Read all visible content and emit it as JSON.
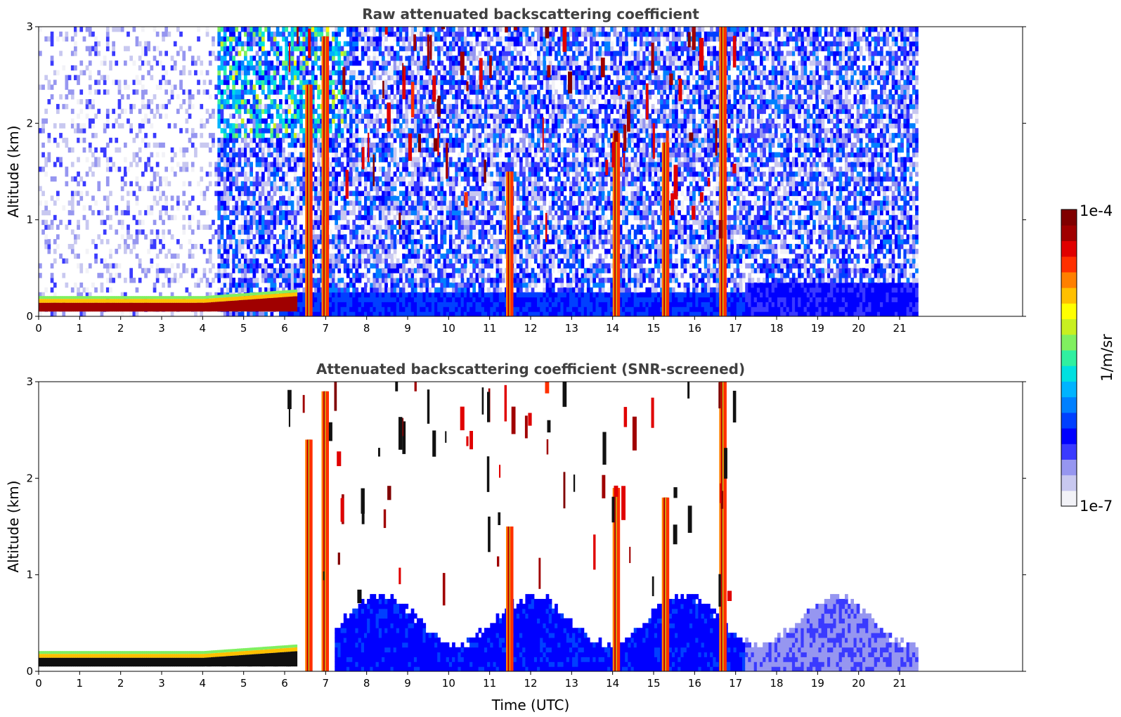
{
  "colorbar": {
    "max_label": "1e-4",
    "min_label": "1e-7",
    "unit_label": "1/m/sr",
    "colormap": [
      "#f2f2f7",
      "#c8c8f0",
      "#9696f0",
      "#3a3aff",
      "#0000ff",
      "#0040ff",
      "#0080ff",
      "#00b4ff",
      "#00e0e0",
      "#30f0a0",
      "#80f060",
      "#c8f020",
      "#ffff00",
      "#ffc000",
      "#ff8000",
      "#ff3000",
      "#e00000",
      "#a00000",
      "#800000"
    ]
  },
  "chart_data": [
    {
      "type": "heatmap",
      "title": "Raw attenuated backscattering coefficient",
      "xlabel": "",
      "ylabel": "Altitude (km)",
      "xlim": [
        0,
        24
      ],
      "ylim": [
        0,
        3
      ],
      "x_ticks": [
        "0",
        "1",
        "2",
        "3",
        "4",
        "5",
        "6",
        "7",
        "8",
        "9",
        "10",
        "11",
        "12",
        "13",
        "14",
        "15",
        "16",
        "17",
        "18",
        "19",
        "20",
        "21"
      ],
      "y_ticks": [
        "0",
        "1",
        "2",
        "3"
      ],
      "data_end_x": 21.45,
      "surface_layer": {
        "x_range": [
          0,
          6.3
        ],
        "altitude_km": [
          0.05,
          0.2
        ]
      },
      "rain_shafts_x": [
        6.6,
        7.0,
        11.5,
        14.1,
        15.3,
        16.7
      ]
    },
    {
      "type": "heatmap",
      "title": "Attenuated backscattering coefficient (SNR-screened)",
      "xlabel": "Time (UTC)",
      "ylabel": "Altitude (km)",
      "xlim": [
        0,
        24
      ],
      "ylim": [
        0,
        3
      ],
      "x_ticks": [
        "0",
        "1",
        "2",
        "3",
        "4",
        "5",
        "6",
        "7",
        "8",
        "9",
        "10",
        "11",
        "12",
        "13",
        "14",
        "15",
        "16",
        "17",
        "18",
        "19",
        "20",
        "21"
      ],
      "y_ticks": [
        "0",
        "1",
        "2",
        "3"
      ],
      "data_end_x": 21.45,
      "surface_layer": {
        "x_range": [
          0,
          6.3
        ],
        "altitude_km": [
          0.05,
          0.2
        ]
      },
      "rain_shafts_x": [
        6.6,
        7.0,
        11.5,
        14.1,
        15.3,
        16.7
      ]
    }
  ]
}
